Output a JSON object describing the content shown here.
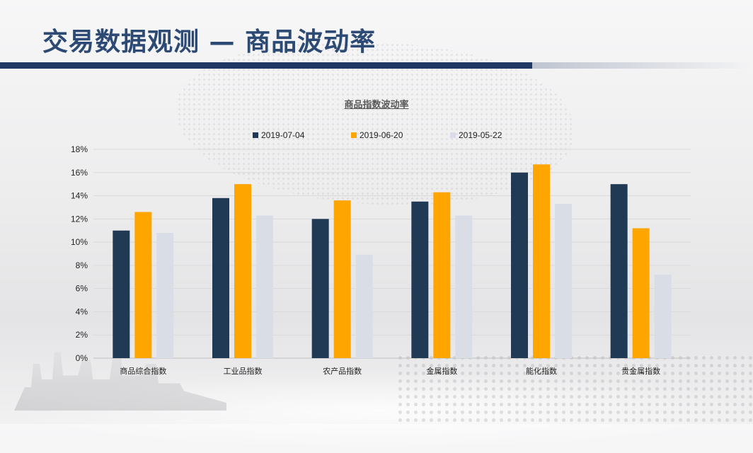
{
  "page": {
    "title": "交易数据观测 — 商品波动率"
  },
  "colors": {
    "title": "#2c4a73",
    "bar": "#203864"
  },
  "chart_data": {
    "type": "bar",
    "title": "商品指数波动率",
    "categories": [
      "商品综合指数",
      "工业品指数",
      "农产品指数",
      "金属指数",
      "能化指数",
      "贵金属指数"
    ],
    "series": [
      {
        "name": "2019-07-04",
        "color": "#203a55",
        "values": [
          11.0,
          13.8,
          12.0,
          13.5,
          16.0,
          15.0
        ]
      },
      {
        "name": "2019-06-20",
        "color": "#ffa500",
        "values": [
          12.6,
          15.0,
          13.6,
          14.3,
          16.7,
          11.2
        ]
      },
      {
        "name": "2019-05-22",
        "color": "#d9dee6",
        "values": [
          10.8,
          12.3,
          8.9,
          12.3,
          13.3,
          7.2
        ]
      }
    ],
    "ylim": [
      0,
      18
    ],
    "yticks": [
      "0%",
      "2%",
      "4%",
      "6%",
      "8%",
      "10%",
      "12%",
      "14%",
      "16%",
      "18%"
    ],
    "ytick_values": [
      0,
      2,
      4,
      6,
      8,
      10,
      12,
      14,
      16,
      18
    ],
    "grid": true,
    "legend_position": "top"
  }
}
